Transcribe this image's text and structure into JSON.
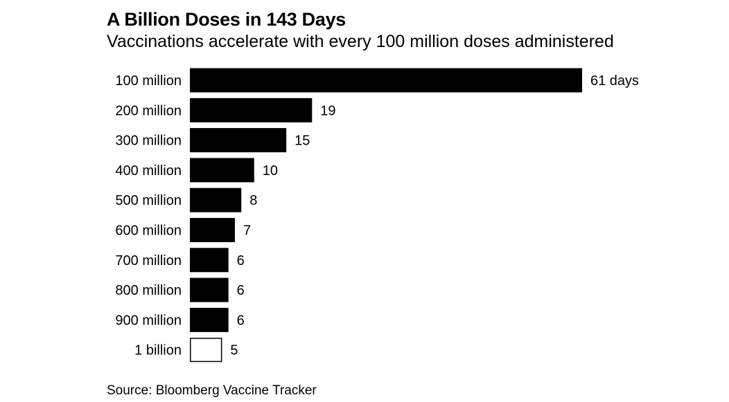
{
  "title": "A Billion Doses in 143 Days",
  "subtitle": "Vaccinations accelerate with every 100 million doses administered",
  "source": "Source: Bloomberg Vaccine Tracker",
  "colors": {
    "bar": "#000000",
    "highlight_bar_fill": "#ffffff",
    "highlight_bar_stroke": "#000000",
    "text": "#000000",
    "background": "#ffffff"
  },
  "chart_data": {
    "type": "bar",
    "orientation": "horizontal",
    "categories": [
      "100 million",
      "200 million",
      "300 million",
      "400 million",
      "500 million",
      "600 million",
      "700 million",
      "800 million",
      "900 million",
      "1 billion"
    ],
    "values": [
      61,
      19,
      15,
      10,
      8,
      7,
      6,
      6,
      6,
      5
    ],
    "value_labels": [
      "61 days",
      "19",
      "15",
      "10",
      "8",
      "7",
      "6",
      "6",
      "6",
      "5"
    ],
    "highlighted_category": "1 billion",
    "xlim": [
      0,
      61
    ],
    "grid": false,
    "legend": "none"
  }
}
